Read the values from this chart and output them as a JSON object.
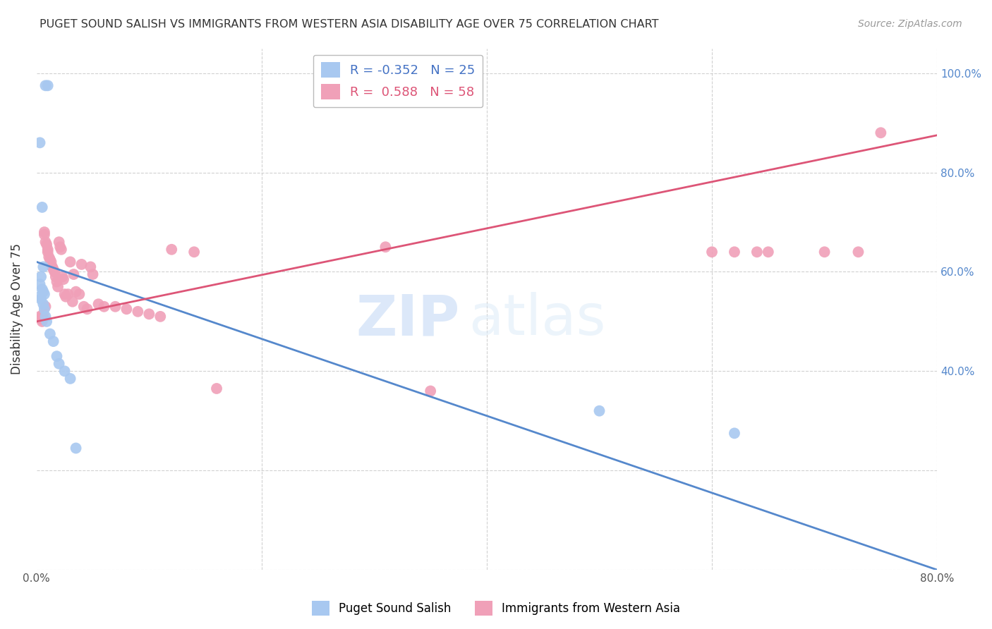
{
  "title": "PUGET SOUND SALISH VS IMMIGRANTS FROM WESTERN ASIA DISABILITY AGE OVER 75 CORRELATION CHART",
  "source": "Source: ZipAtlas.com",
  "ylabel": "Disability Age Over 75",
  "xlim": [
    0.0,
    0.8
  ],
  "ylim": [
    0.0,
    1.05
  ],
  "xticks": [
    0.0,
    0.2,
    0.4,
    0.6,
    0.8
  ],
  "xticklabels": [
    "0.0%",
    "",
    "",
    "",
    "80.0%"
  ],
  "blue_R": "-0.352",
  "blue_N": "25",
  "pink_R": "0.588",
  "pink_N": "58",
  "blue_label": "Puget Sound Salish",
  "pink_label": "Immigrants from Western Asia",
  "blue_color": "#a8c8f0",
  "pink_color": "#f0a0b8",
  "blue_line_color": "#5588cc",
  "pink_line_color": "#dd5577",
  "watermark_zip": "ZIP",
  "watermark_atlas": "atlas",
  "blue_line_x0": 0.0,
  "blue_line_y0": 0.62,
  "blue_line_x1": 0.8,
  "blue_line_y1": 0.0,
  "pink_line_x0": 0.0,
  "pink_line_y0": 0.5,
  "pink_line_x1": 0.8,
  "pink_line_y1": 0.875,
  "blue_scatter_x": [
    0.008,
    0.01,
    0.003,
    0.005,
    0.006,
    0.004,
    0.003,
    0.005,
    0.006,
    0.007,
    0.003,
    0.004,
    0.006,
    0.007,
    0.008,
    0.009,
    0.012,
    0.015,
    0.018,
    0.02,
    0.025,
    0.03,
    0.035,
    0.5,
    0.62
  ],
  "blue_scatter_y": [
    0.975,
    0.975,
    0.86,
    0.73,
    0.61,
    0.59,
    0.575,
    0.565,
    0.56,
    0.555,
    0.55,
    0.545,
    0.535,
    0.525,
    0.51,
    0.5,
    0.475,
    0.46,
    0.43,
    0.415,
    0.4,
    0.385,
    0.245,
    0.32,
    0.275
  ],
  "pink_scatter_x": [
    0.003,
    0.004,
    0.005,
    0.005,
    0.006,
    0.007,
    0.007,
    0.008,
    0.008,
    0.009,
    0.01,
    0.01,
    0.011,
    0.012,
    0.013,
    0.014,
    0.015,
    0.016,
    0.017,
    0.018,
    0.019,
    0.02,
    0.021,
    0.022,
    0.023,
    0.024,
    0.025,
    0.026,
    0.028,
    0.03,
    0.032,
    0.033,
    0.035,
    0.038,
    0.04,
    0.042,
    0.045,
    0.048,
    0.05,
    0.055,
    0.06,
    0.07,
    0.08,
    0.09,
    0.1,
    0.11,
    0.12,
    0.14,
    0.16,
    0.31,
    0.35,
    0.6,
    0.62,
    0.64,
    0.65,
    0.7,
    0.73,
    0.75
  ],
  "pink_scatter_y": [
    0.51,
    0.505,
    0.5,
    0.51,
    0.515,
    0.68,
    0.675,
    0.53,
    0.66,
    0.655,
    0.645,
    0.64,
    0.63,
    0.625,
    0.62,
    0.61,
    0.605,
    0.6,
    0.59,
    0.58,
    0.57,
    0.66,
    0.65,
    0.645,
    0.59,
    0.585,
    0.555,
    0.55,
    0.555,
    0.62,
    0.54,
    0.595,
    0.56,
    0.555,
    0.615,
    0.53,
    0.525,
    0.61,
    0.595,
    0.535,
    0.53,
    0.53,
    0.525,
    0.52,
    0.515,
    0.51,
    0.645,
    0.64,
    0.365,
    0.65,
    0.36,
    0.64,
    0.64,
    0.64,
    0.64,
    0.64,
    0.64,
    0.88
  ]
}
